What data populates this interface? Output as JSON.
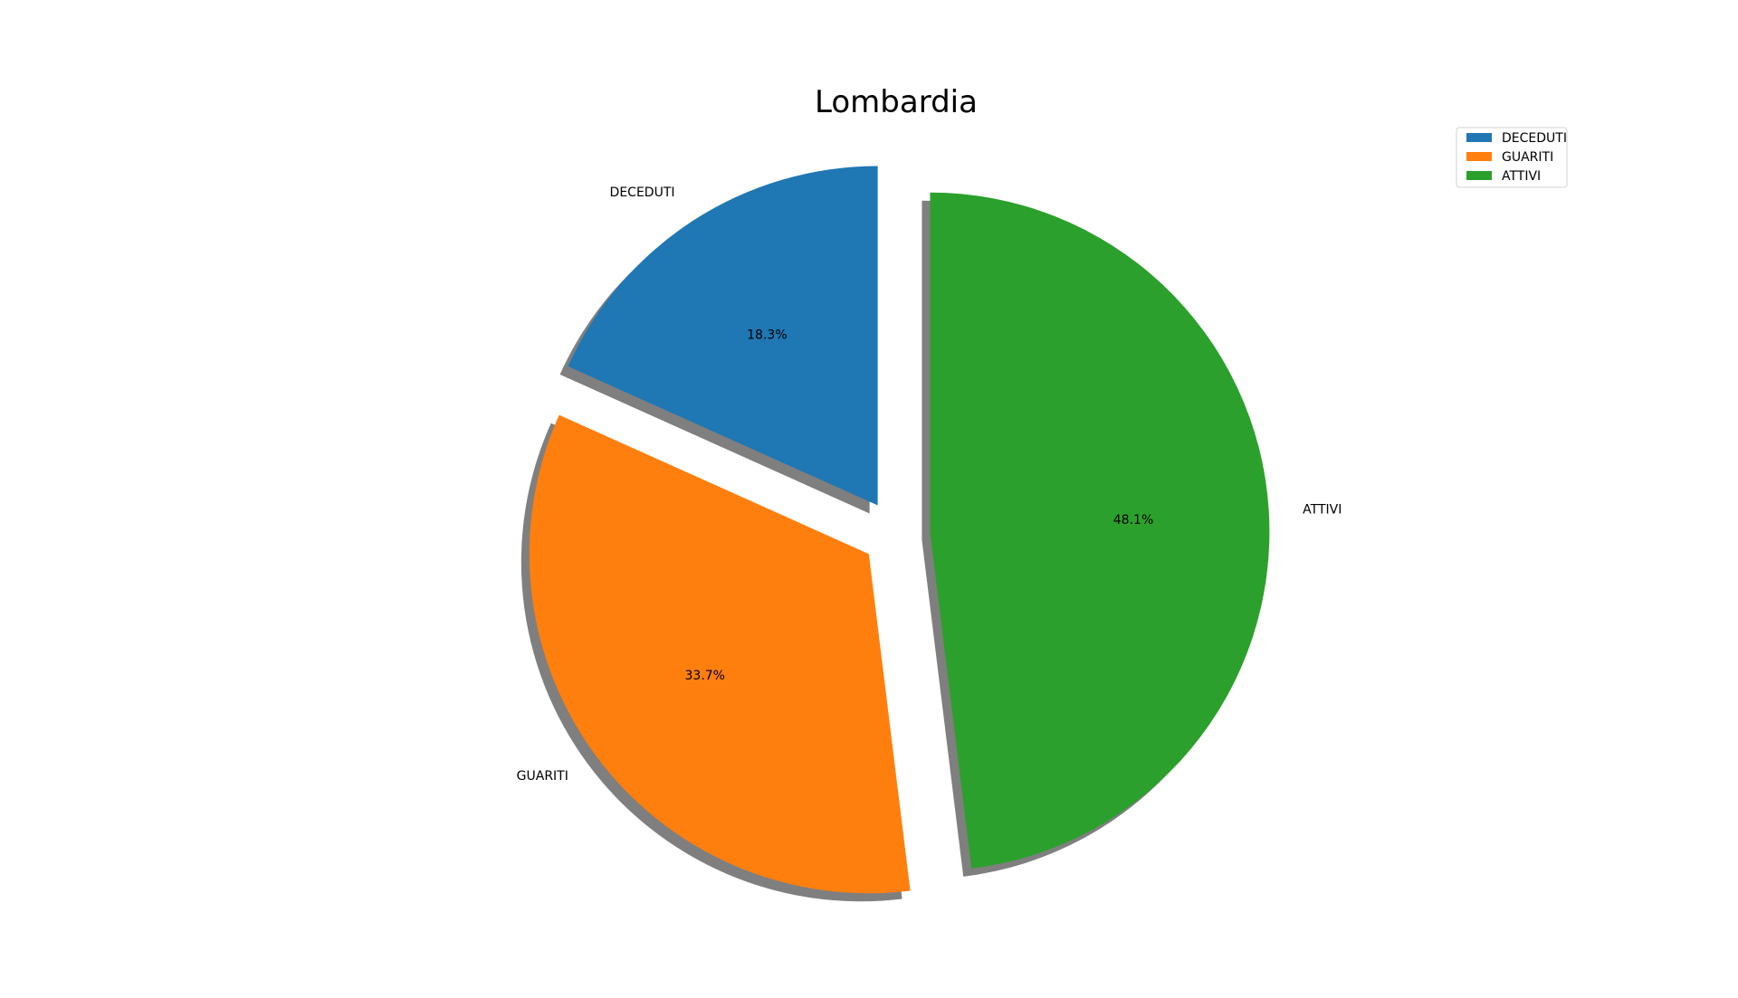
{
  "chart_data": {
    "type": "pie",
    "title": "Lombardia",
    "start_angle": 90,
    "direction": "counterclockwise",
    "shadow": true,
    "legend_position": "top-right",
    "slices": [
      {
        "label": "DECEDUTI",
        "value": 18.3,
        "pct_label": "18.3%",
        "color": "#1f77b4",
        "exploded": true
      },
      {
        "label": "GUARITI",
        "value": 33.7,
        "pct_label": "33.7%",
        "color": "#ff7f0e",
        "exploded": true
      },
      {
        "label": "ATTIVI",
        "value": 48.1,
        "pct_label": "48.1%",
        "color": "#2ca02c",
        "exploded": true
      }
    ],
    "legend": [
      "DECEDUTI",
      "GUARITI",
      "ATTIVI"
    ]
  }
}
